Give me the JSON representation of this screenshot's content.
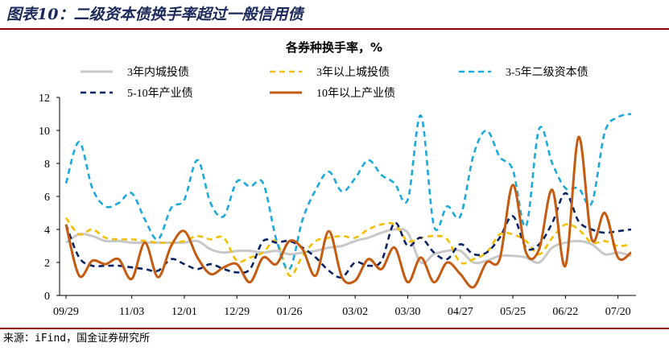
{
  "figure": {
    "title": "图表10：二级资本债换手率超过一般信用债",
    "source": "来源：iFind，国金证券研究所"
  },
  "chart_data": {
    "type": "line",
    "title": "各券种换手率，%",
    "xlabel": "",
    "ylabel": "",
    "ylim": [
      0,
      12
    ],
    "yticks": [
      0,
      2,
      4,
      6,
      8,
      10,
      12
    ],
    "xtick_labels": [
      "09/29",
      "11/03",
      "12/01",
      "12/29",
      "01/26",
      "03/02",
      "03/30",
      "04/27",
      "05/25",
      "06/22",
      "07/20"
    ],
    "grid": false,
    "legend_position": "top",
    "x": [
      "09/29",
      "10/06",
      "10/13",
      "10/20",
      "10/27",
      "11/03",
      "11/10",
      "11/17",
      "11/24",
      "12/01",
      "12/08",
      "12/15",
      "12/22",
      "12/29",
      "01/05",
      "01/12",
      "01/19",
      "01/26",
      "02/02",
      "02/09",
      "02/16",
      "02/23",
      "03/02",
      "03/09",
      "03/16",
      "03/23",
      "03/30",
      "04/06",
      "04/13",
      "04/20",
      "04/27",
      "05/04",
      "05/11",
      "05/18",
      "05/25",
      "06/01",
      "06/08",
      "06/15",
      "06/22",
      "06/29",
      "07/06",
      "07/13",
      "07/20",
      "07/27"
    ],
    "series": [
      {
        "name": "3年内城投债",
        "color": "#c8c8c8",
        "dash": "solid",
        "values": [
          3.2,
          3.7,
          3.6,
          3.3,
          3.3,
          3.2,
          3.2,
          3.2,
          3.2,
          3.2,
          3.3,
          2.8,
          2.6,
          2.7,
          2.7,
          2.6,
          2.7,
          2.5,
          2.6,
          2.7,
          2.9,
          3.0,
          3.3,
          3.5,
          3.8,
          4.0,
          3.8,
          2.0,
          2.5,
          2.7,
          2.7,
          2.0,
          2.1,
          2.4,
          2.4,
          2.3,
          2.0,
          2.9,
          3.2,
          3.3,
          3.1,
          2.5,
          2.6,
          2.4
        ]
      },
      {
        "name": "3年以上城投债",
        "color": "#f5bf00",
        "dash": "dashed",
        "values": [
          4.7,
          3.7,
          4.0,
          3.5,
          3.4,
          3.4,
          3.3,
          3.2,
          3.2,
          3.3,
          3.6,
          3.4,
          3.5,
          2.1,
          2.3,
          2.6,
          3.3,
          1.2,
          2.4,
          3.3,
          3.5,
          3.6,
          3.5,
          4.0,
          4.3,
          4.3,
          3.3,
          3.5,
          3.6,
          3.4,
          2.0,
          2.2,
          2.6,
          3.7,
          3.7,
          3.3,
          2.5,
          3.5,
          4.3,
          4.0,
          3.2,
          3.3,
          3.0,
          3.1
        ]
      },
      {
        "name": "3-5年二级资本债",
        "color": "#1ca9dc",
        "dash": "dashed",
        "values": [
          6.8,
          9.3,
          6.5,
          5.4,
          5.6,
          6.2,
          4.6,
          3.4,
          5.3,
          5.8,
          8.2,
          5.6,
          4.8,
          6.9,
          6.6,
          6.8,
          3.4,
          1.6,
          4.6,
          6.4,
          7.5,
          6.3,
          7.1,
          8.2,
          7.3,
          6.8,
          5.8,
          10.9,
          4.2,
          5.4,
          4.8,
          8.5,
          10.0,
          8.4,
          7.6,
          4.2,
          10.1,
          8.0,
          6.5,
          6.5,
          5.6,
          9.9,
          10.8,
          11.0
        ]
      },
      {
        "name": "5-10年产业债",
        "color": "#0a2463",
        "dash": "dashed",
        "values": [
          4.3,
          2.3,
          1.8,
          1.8,
          1.8,
          1.7,
          1.6,
          1.5,
          2.2,
          1.9,
          1.6,
          1.9,
          1.6,
          1.4,
          1.6,
          3.3,
          3.2,
          3.3,
          2.9,
          2.3,
          1.5,
          1.1,
          2.0,
          1.8,
          2.1,
          4.4,
          3.0,
          3.5,
          2.6,
          2.2,
          3.1,
          2.5,
          2.6,
          3.5,
          4.8,
          2.9,
          3.1,
          4.4,
          6.2,
          4.5,
          4.0,
          3.8,
          3.9,
          4.0
        ]
      },
      {
        "name": "10年以上产业债",
        "color": "#c55a11",
        "dash": "solid",
        "values": [
          4.3,
          1.2,
          2.1,
          1.9,
          2.2,
          1.0,
          3.2,
          1.1,
          3.0,
          3.9,
          2.3,
          1.3,
          1.7,
          1.9,
          0.8,
          2.3,
          1.9,
          3.3,
          2.8,
          1.2,
          3.9,
          1.1,
          0.9,
          2.2,
          1.6,
          2.9,
          0.8,
          2.3,
          0.8,
          2.0,
          1.3,
          0.5,
          2.0,
          2.2,
          6.7,
          2.6,
          2.8,
          6.4,
          1.8,
          9.6,
          3.4,
          5.0,
          2.3,
          2.6
        ]
      }
    ]
  }
}
